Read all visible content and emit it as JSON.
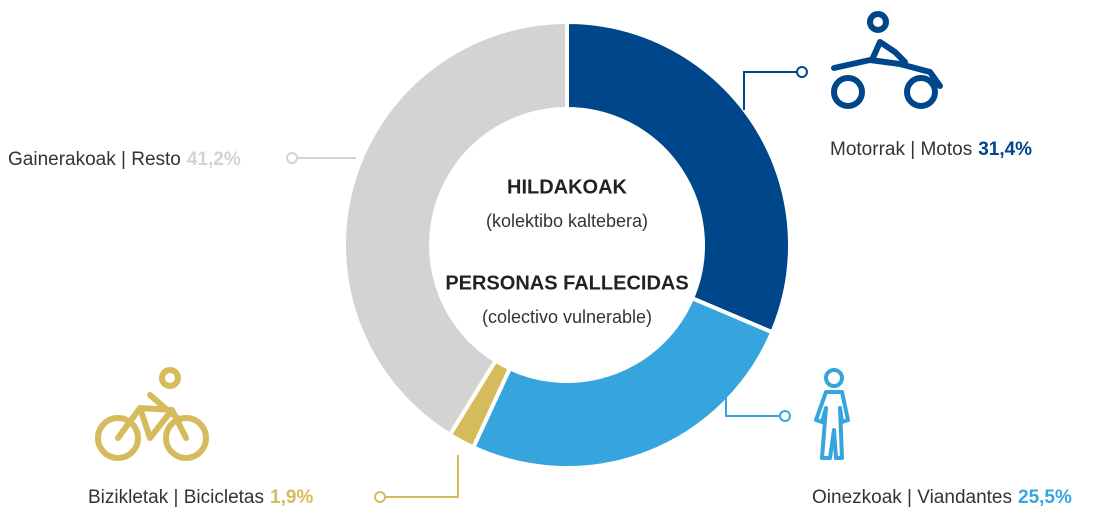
{
  "chart_data": {
    "type": "pie",
    "donut": true,
    "center_text": [
      "HILDAKOAK",
      "(kolektibo kaltebera)",
      "PERSONAS FALLECIDAS",
      "(colectivo vulnerable)"
    ],
    "categories": [
      "Motorrak | Motos",
      "Oinezkoak | Viandantes",
      "Bizikletak | Bicicletas",
      "Gainerakoak | Resto"
    ],
    "values": [
      31.4,
      25.5,
      1.9,
      41.2
    ],
    "value_labels": [
      "31,4%",
      "25,5%",
      "1,9%",
      "41,2%"
    ],
    "colors": [
      "#00468b",
      "#36a4dd",
      "#d6bb5c",
      "#d3d3d3"
    ]
  }
}
